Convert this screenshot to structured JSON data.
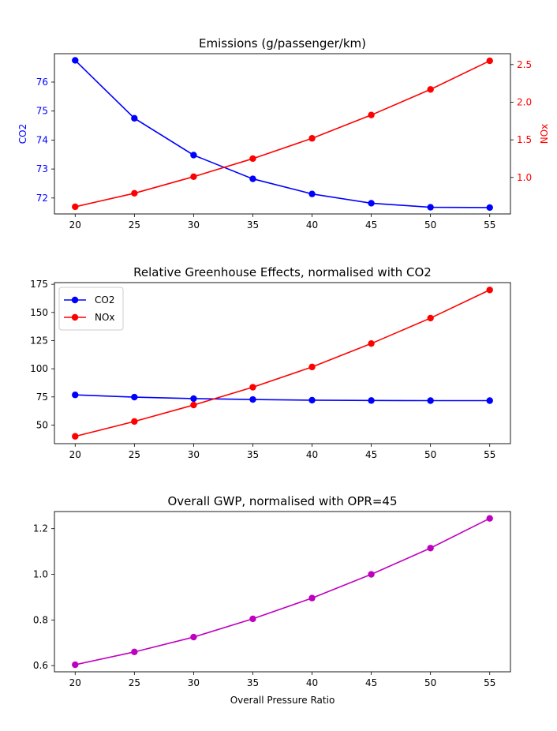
{
  "chart_data": [
    {
      "type": "line",
      "title": "Emissions (g/passenger/km)",
      "xlabel": "",
      "x": [
        20,
        25,
        30,
        35,
        40,
        45,
        50,
        55
      ],
      "xticks": [
        20,
        25,
        30,
        35,
        40,
        45,
        50,
        55
      ],
      "xlim": [
        18.25,
        56.75
      ],
      "grid": false,
      "y_left": {
        "label": "CO2",
        "color": "#0000ff",
        "ylim": [
          71.45,
          76.98
        ],
        "ticks": [
          72,
          73,
          74,
          75,
          76
        ]
      },
      "y_right": {
        "label": "NOx",
        "color": "#ff0000",
        "ylim": [
          0.515,
          2.645
        ],
        "ticks": [
          1.0,
          1.5,
          2.0,
          2.5
        ],
        "tick_labels": [
          "1.0",
          "1.5",
          "2.0",
          "2.5"
        ]
      },
      "series": [
        {
          "axis": "left",
          "color": "#0000ff",
          "marker": "circle",
          "values": [
            76.75,
            74.75,
            73.48,
            72.66,
            72.14,
            71.82,
            71.68,
            71.67
          ]
        },
        {
          "axis": "right",
          "color": "#ff0000",
          "marker": "circle",
          "values": [
            0.61,
            0.79,
            1.01,
            1.25,
            1.52,
            1.83,
            2.17,
            2.55
          ]
        }
      ]
    },
    {
      "type": "line",
      "title": "Relative Greenhouse Effects, normalised with CO2",
      "xlabel": "",
      "x": [
        20,
        25,
        30,
        35,
        40,
        45,
        50,
        55
      ],
      "xticks": [
        20,
        25,
        30,
        35,
        40,
        45,
        50,
        55
      ],
      "xlim": [
        18.25,
        56.75
      ],
      "grid": false,
      "ylim": [
        33.5,
        176.5
      ],
      "yticks": [
        50,
        75,
        100,
        125,
        150,
        175
      ],
      "legend": {
        "placement": "upper-left"
      },
      "series": [
        {
          "name": "CO2",
          "color": "#0000ff",
          "marker": "circle",
          "values": [
            76.8,
            74.8,
            73.5,
            72.7,
            72.1,
            71.8,
            71.7,
            71.7
          ]
        },
        {
          "name": "NOx",
          "color": "#ff0000",
          "marker": "circle",
          "values": [
            40.0,
            53.2,
            67.8,
            83.6,
            101.6,
            122.4,
            145.0,
            170.0
          ]
        }
      ]
    },
    {
      "type": "line",
      "title": "Overall GWP, normalised with OPR=45",
      "xlabel": "Overall Pressure Ratio",
      "x": [
        20,
        25,
        30,
        35,
        40,
        45,
        50,
        55
      ],
      "xticks": [
        20,
        25,
        30,
        35,
        40,
        45,
        50,
        55
      ],
      "xlim": [
        18.25,
        56.75
      ],
      "grid": false,
      "ylim": [
        0.573,
        1.275
      ],
      "yticks": [
        0.6,
        0.8,
        1.0,
        1.2
      ],
      "ytick_labels": [
        "0.6",
        "0.8",
        "1.0",
        "1.2"
      ],
      "series": [
        {
          "color": "#bf00bf",
          "marker": "circle",
          "values": [
            0.604,
            0.66,
            0.725,
            0.805,
            0.896,
            1.0,
            1.115,
            1.245
          ]
        }
      ]
    }
  ]
}
